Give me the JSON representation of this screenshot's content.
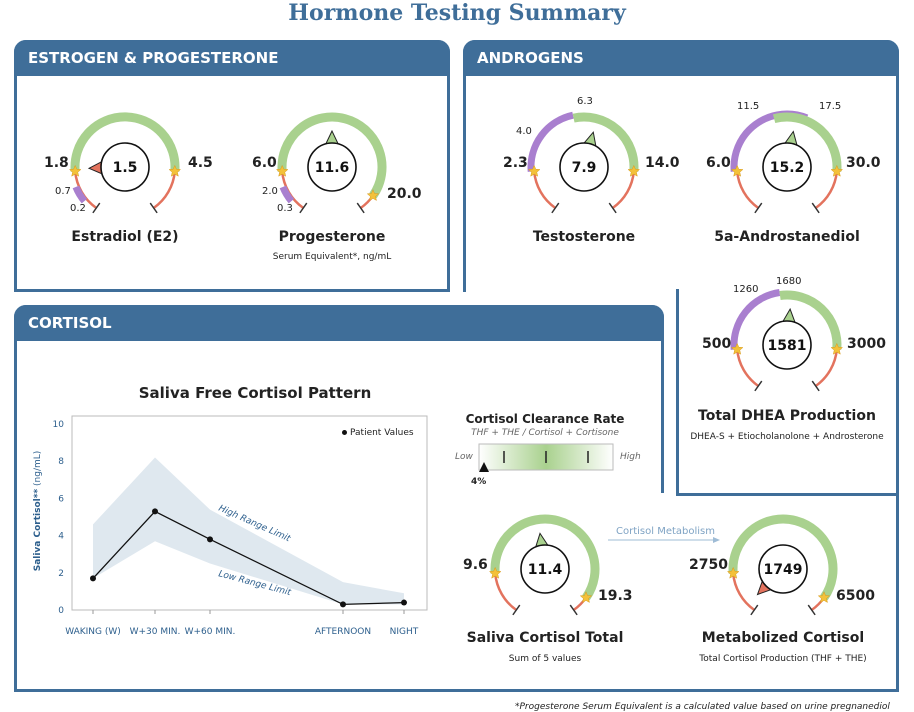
{
  "title": "Hormone Testing Summary",
  "sections": {
    "estrogen": "ESTROGEN & PROGESTERONE",
    "androgens": "ANDROGENS",
    "cortisol": "CORTISOL"
  },
  "gauges": {
    "estradiol": {
      "name": "Estradiol (E2)",
      "value": "1.5",
      "low": "1.8",
      "high": "4.5",
      "low_inner": "0.7",
      "low_min": "0.2"
    },
    "progesterone": {
      "name": "Progesterone",
      "sub": "Serum Equivalent*, ng/mL",
      "value": "11.6",
      "low": "6.0",
      "high": "20.0",
      "low_inner": "2.0",
      "low_min": "0.3"
    },
    "testosterone": {
      "name": "Testosterone",
      "value": "7.9",
      "low": "2.3",
      "high": "14.0",
      "mark1": "4.0",
      "mark2": "6.3"
    },
    "androstanediol": {
      "name": "5a-Androstanediol",
      "value": "15.2",
      "low": "6.0",
      "high": "30.0",
      "mark1": "11.5",
      "mark2": "17.5"
    },
    "dhea": {
      "name": "Total DHEA Production",
      "sub": "DHEA-S + Etiocholanolone + Androsterone",
      "value": "1581",
      "low": "500",
      "high": "3000",
      "mark1": "1260",
      "mark2": "1680"
    },
    "saliva_total": {
      "name": "Saliva Cortisol Total",
      "sub": "Sum of 5 values",
      "value": "11.4",
      "low": "9.6",
      "high": "19.3"
    },
    "metabolized": {
      "name": "Metabolized Cortisol",
      "sub": "Total Cortisol Production (THF + THE)",
      "value": "1749",
      "low": "2750",
      "high": "6500"
    }
  },
  "arrow_label": "Cortisol Metabolism",
  "clearance": {
    "title": "Cortisol Clearance Rate",
    "subtitle": "THF + THE / Cortisol + Cortisone",
    "low": "Low",
    "high": "High",
    "value_label": "4%",
    "value_fraction": 0.0
  },
  "chart_data": {
    "type": "line",
    "title": "Saliva Free Cortisol Pattern",
    "ylabel_main": "Saliva Cortisol**",
    "ylabel_unit": " (ng/mL)",
    "legend": "Patient Values",
    "categories": [
      "WAKING (W)",
      "W+30 MIN.",
      "W+60 MIN.",
      "AFTERNOON",
      "NIGHT"
    ],
    "x_positions": [
      0,
      1,
      2,
      4,
      5.2
    ],
    "yticks": [
      "0",
      "2",
      "4",
      "6",
      "8",
      "10"
    ],
    "ylim": [
      0,
      10
    ],
    "patient_values": [
      1.7,
      5.3,
      3.8,
      0.3,
      0.4
    ],
    "range_high": [
      4.6,
      8.2,
      5.4,
      1.5,
      0.9
    ],
    "range_low": [
      1.7,
      3.7,
      2.5,
      0.3,
      0.3
    ],
    "high_label": "High Range Limit",
    "low_label": "Low Range Limit"
  },
  "footnote": "*Progesterone Serum Equivalent is a calculated value based on urine pregnanediol",
  "colors": {
    "frame": "#3f6e99",
    "green": "#a9d18e",
    "red": "#e3735e",
    "purple": "#a97fcf",
    "star": "#f3c13a"
  }
}
